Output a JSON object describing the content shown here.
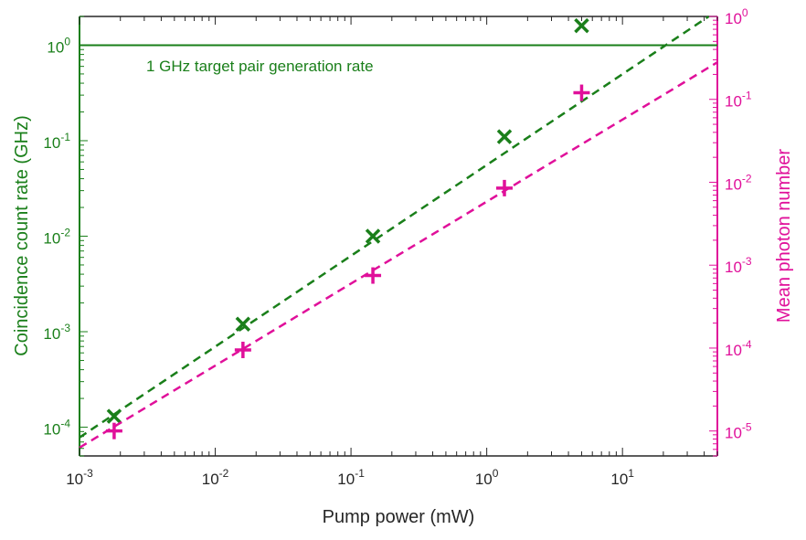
{
  "chart_data": {
    "type": "scatter",
    "title": "",
    "xlabel": "Pump power (mW)",
    "ylabel_left": "Coincidence count rate (GHz)",
    "ylabel_right": "Mean photon number",
    "x_scale": "log",
    "x_range": [
      0.001,
      50
    ],
    "y_left_scale": "log",
    "y_left_range": [
      5e-05,
      2
    ],
    "y_right_scale": "log",
    "y_right_range": [
      5e-06,
      1
    ],
    "x_ticks": [
      {
        "value": 0.001,
        "base": "10",
        "exp": "-3"
      },
      {
        "value": 0.01,
        "base": "10",
        "exp": "-2"
      },
      {
        "value": 0.1,
        "base": "10",
        "exp": "-1"
      },
      {
        "value": 1,
        "base": "10",
        "exp": "0"
      },
      {
        "value": 10,
        "base": "10",
        "exp": "1"
      }
    ],
    "y_left_ticks": [
      {
        "value": 0.0001,
        "base": "10",
        "exp": "-4"
      },
      {
        "value": 0.001,
        "base": "10",
        "exp": "-3"
      },
      {
        "value": 0.01,
        "base": "10",
        "exp": "-2"
      },
      {
        "value": 0.1,
        "base": "10",
        "exp": "-1"
      },
      {
        "value": 1,
        "base": "10",
        "exp": "0"
      }
    ],
    "y_right_ticks": [
      {
        "value": 1e-05,
        "base": "10",
        "exp": "-5"
      },
      {
        "value": 0.0001,
        "base": "10",
        "exp": "-4"
      },
      {
        "value": 0.001,
        "base": "10",
        "exp": "-3"
      },
      {
        "value": 0.01,
        "base": "10",
        "exp": "-2"
      },
      {
        "value": 0.1,
        "base": "10",
        "exp": "-1"
      },
      {
        "value": 1,
        "base": "10",
        "exp": "0"
      }
    ],
    "series": [
      {
        "name": "Coincidence count rate",
        "axis": "left",
        "marker": "x",
        "color": "#1a7f1a",
        "points": [
          {
            "x": 0.0018,
            "y": 0.00013
          },
          {
            "x": 0.016,
            "y": 0.0012
          },
          {
            "x": 0.145,
            "y": 0.01
          },
          {
            "x": 1.35,
            "y": 0.11
          },
          {
            "x": 5.0,
            "y": 1.6
          }
        ],
        "fit": {
          "style": "dashed",
          "x": [
            0.001,
            50
          ],
          "y": [
            7.8e-05,
            2.3
          ]
        }
      },
      {
        "name": "Mean photon number",
        "axis": "right",
        "marker": "+",
        "color": "#e0109a",
        "points": [
          {
            "x": 0.0018,
            "y": 1e-05
          },
          {
            "x": 0.016,
            "y": 9.5e-05
          },
          {
            "x": 0.145,
            "y": 0.00075
          },
          {
            "x": 1.35,
            "y": 0.0085
          },
          {
            "x": 5.0,
            "y": 0.12
          }
        ],
        "fit": {
          "style": "dashed",
          "x": [
            0.001,
            50
          ],
          "y": [
            6.3e-06,
            0.28
          ]
        }
      }
    ],
    "hline": {
      "axis": "left",
      "y": 1,
      "color": "#1a7f1a",
      "label": "1 GHz target pair generation rate"
    }
  },
  "colors": {
    "left": "#1a7f1a",
    "right": "#e0109a",
    "axis": "#262626"
  }
}
